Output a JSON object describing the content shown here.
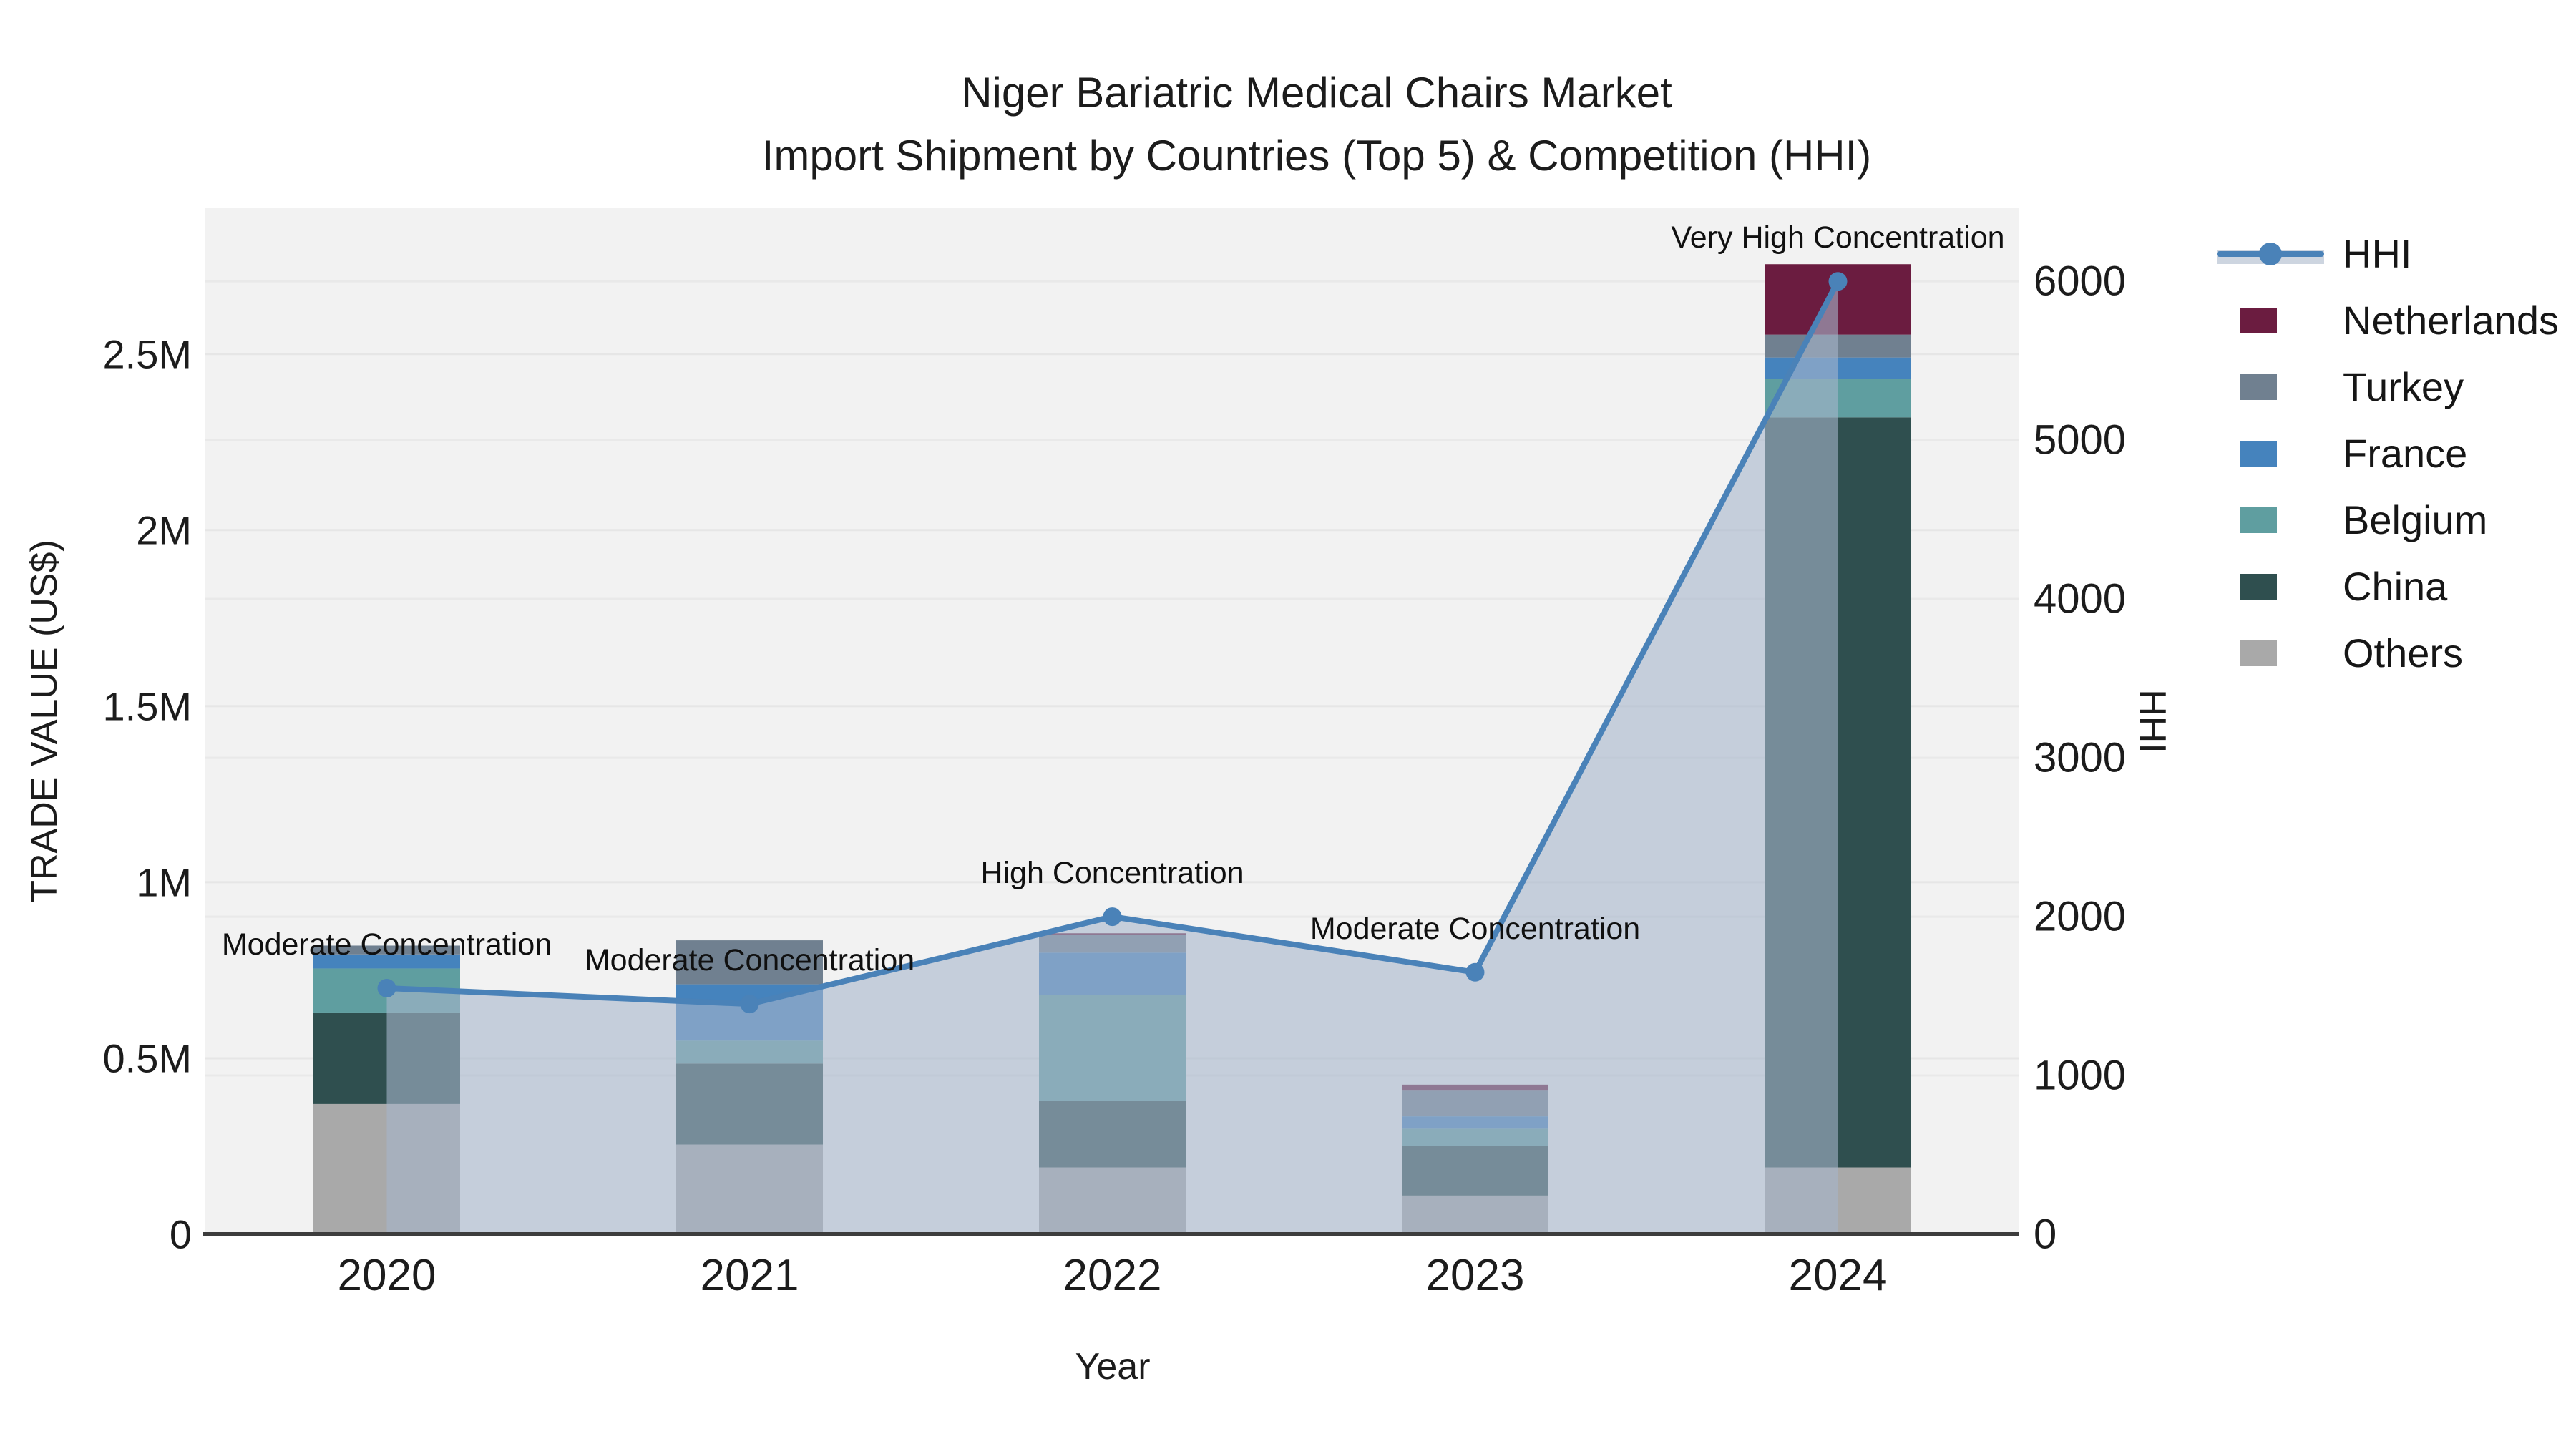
{
  "title": {
    "line1": "Niger Bariatric Medical Chairs Market",
    "line2": "Import Shipment by Countries (Top 5) & Competition (HHI)"
  },
  "axes": {
    "x_title": "Year",
    "y_left_title": "TRADE VALUE (US$)",
    "y_right_title": "HHI",
    "y_left_ticks": [
      "0",
      "0.5M",
      "1M",
      "1.5M",
      "2M",
      "2.5M"
    ],
    "y_right_ticks": [
      "0",
      "1000",
      "2000",
      "3000",
      "4000",
      "5000",
      "6000"
    ]
  },
  "legend": {
    "items": [
      {
        "label": "HHI",
        "kind": "line"
      },
      {
        "label": "Netherlands",
        "kind": "swatch",
        "color": "#6b1c40"
      },
      {
        "label": "Turkey",
        "kind": "swatch",
        "color": "#708090"
      },
      {
        "label": "France",
        "kind": "swatch",
        "color": "#4583bd"
      },
      {
        "label": "Belgium",
        "kind": "swatch",
        "color": "#5f9ea0"
      },
      {
        "label": "China",
        "kind": "swatch",
        "color": "#2f4f4f"
      },
      {
        "label": "Others",
        "kind": "swatch",
        "color": "#a9a9a9"
      }
    ]
  },
  "colors": {
    "plot_background": "#f2f2f2",
    "grid_left": "#e6e6e6",
    "grid_right": "#e9e9e9",
    "axis_line": "#3d3d3d",
    "hhi_line": "#4a82b8",
    "hhi_fill": "rgba(167,182,203,0.60)",
    "netherlands": "#6b1c40",
    "turkey": "#708090",
    "france": "#4583bd",
    "belgium": "#5f9ea0",
    "china": "#2f4f4f",
    "others": "#a9a9a9"
  },
  "chart_data": {
    "type": "bar+line",
    "title": "Niger Bariatric Medical Chairs Market — Import Shipment by Countries (Top 5) & Competition (HHI)",
    "categories": [
      "2020",
      "2021",
      "2022",
      "2023",
      "2024"
    ],
    "xlabel": "Year",
    "ylabel_left": "TRADE VALUE (US$)",
    "ylabel_right": "HHI",
    "ylim_left": [
      0,
      2916000
    ],
    "ylim_right": [
      0,
      6465
    ],
    "grid": true,
    "legend_position": "right",
    "stack_order_bottom_to_top": [
      "Others",
      "China",
      "Belgium",
      "France",
      "Turkey",
      "Netherlands"
    ],
    "series": [
      {
        "name": "Others",
        "values": [
          370000,
          255000,
          190000,
          110000,
          190000
        ]
      },
      {
        "name": "China",
        "values": [
          260000,
          230000,
          190000,
          140000,
          2130000
        ]
      },
      {
        "name": "Belgium",
        "values": [
          125000,
          65000,
          300000,
          50000,
          110000
        ]
      },
      {
        "name": "France",
        "values": [
          40000,
          160000,
          120000,
          35000,
          60000
        ]
      },
      {
        "name": "Turkey",
        "values": [
          25000,
          125000,
          50000,
          75000,
          65000
        ]
      },
      {
        "name": "Netherlands",
        "values": [
          0,
          0,
          5000,
          15000,
          200000
        ]
      }
    ],
    "bar_totals": [
      820000,
      835000,
      855000,
      425000,
      2755000
    ],
    "line_series": {
      "name": "HHI",
      "axis": "right",
      "values": [
        1550,
        1450,
        2000,
        1650,
        6000
      ]
    },
    "annotations": [
      {
        "category": "2020",
        "text": "Moderate Concentration"
      },
      {
        "category": "2021",
        "text": "Moderate Concentration"
      },
      {
        "category": "2022",
        "text": "High Concentration"
      },
      {
        "category": "2023",
        "text": "Moderate Concentration"
      },
      {
        "category": "2024",
        "text": "Very High Concentration"
      }
    ]
  }
}
